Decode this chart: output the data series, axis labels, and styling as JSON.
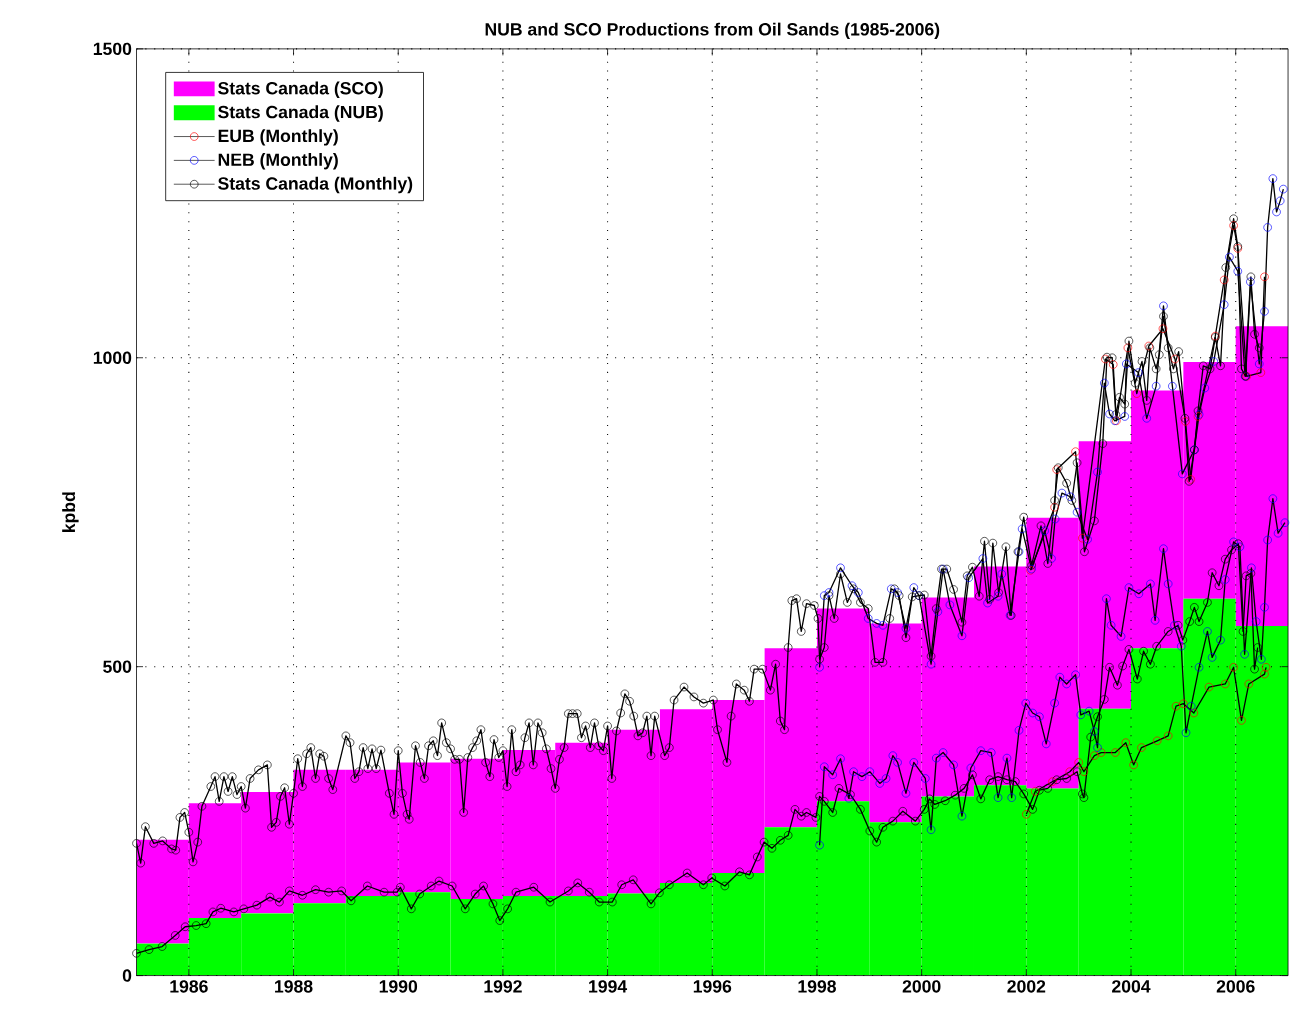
{
  "chart_data": {
    "type": "bar",
    "title": "NUB and SCO Productions from Oil Sands (1985-2006)",
    "ylabel": "kpbd",
    "x": [
      1985.5,
      1986.5,
      1987.5,
      1988.5,
      1989.5,
      1990.5,
      1991.5,
      1992.5,
      1993.5,
      1994.5,
      1995.5,
      1996.5,
      1997.5,
      1998.5,
      1999.5,
      2000.5,
      2001.5,
      2002.5,
      2003.5,
      2004.5,
      2005.5,
      2006.5
    ],
    "stacked": true,
    "grid": true,
    "legend": "top left",
    "xlim": [
      1985,
      2007
    ],
    "xticks": [
      1986,
      1988,
      1990,
      1992,
      1994,
      1996,
      1998,
      2000,
      2002,
      2004,
      2006
    ],
    "ylim": [
      0,
      1500
    ],
    "yticks": [
      0,
      500,
      1000,
      1500
    ],
    "series": [
      {
        "name": "Stats Canada (NUB)",
        "color": "#00ff00",
        "values": [
          52,
          93,
          101,
          117,
          129,
          135,
          124,
          129,
          129,
          133,
          150,
          166,
          240,
          282,
          248,
          290,
          308,
          303,
          432,
          530,
          610,
          566
        ]
      },
      {
        "name": "Stats Canada (SCO)",
        "color": "#ff00ff",
        "values": [
          168,
          186,
          196,
          216,
          204,
          210,
          227,
          236,
          248,
          265,
          281,
          280,
          290,
          312,
          322,
          322,
          354,
          438,
          433,
          417,
          383,
          485
        ]
      },
      {
        "name": "EUB (Monthly)",
        "type": "line",
        "color": "#ff0000",
        "marker": "circle",
        "x": [
          2002.08,
          2002.54,
          2002.58,
          2002.94,
          2003.07,
          2003.51,
          2003.66,
          2003.72,
          2003.94,
          2004.11,
          2004.34,
          2004.61,
          2004.84,
          2005.04,
          2005.14,
          2005.28,
          2005.61,
          2005.78,
          2005.96,
          2006.04,
          2006.21,
          2006.48,
          2006.55
        ],
        "values": [
          656,
          758,
          819,
          848,
          708,
          998,
          989,
          898,
          1016,
          942,
          1019,
          1047,
          998,
          897,
          803,
          905,
          1035,
          1126,
          1214,
          1177,
          970,
          976,
          1131
        ]
      },
      {
        "name": "NEB (Monthly)",
        "type": "line",
        "color": "#0000ff",
        "marker": "circle",
        "x": [
          1998.05,
          1998.14,
          1998.23,
          1998.45,
          1998.67,
          1998.79,
          1998.98,
          1999.14,
          1999.26,
          1999.42,
          1999.54,
          1999.7,
          1999.85,
          1999.95,
          2000.18,
          2000.31,
          2000.41,
          2000.54,
          2000.77,
          2000.9,
          2001.17,
          2001.26,
          2001.46,
          2001.53,
          2001.69,
          2001.86,
          2001.92,
          2002.1,
          2002.35,
          2002.48,
          2002.55,
          2002.68,
          2002.84,
          2002.97,
          2003.17,
          2003.36,
          2003.49,
          2003.59,
          2003.69,
          2003.88,
          2003.91,
          2004.14,
          2004.3,
          2004.48,
          2004.62,
          2004.79,
          2004.98,
          2005.21,
          2005.3,
          2005.41,
          2005.58,
          2005.78,
          2005.88,
          2006.04,
          2006.18,
          2006.28,
          2006.45,
          2006.55,
          2006.61,
          2006.71,
          2006.78,
          2006.85,
          2006.91
        ],
        "values": [
          499,
          615,
          620,
          660,
          631,
          620,
          578,
          570,
          567,
          626,
          620,
          562,
          628,
          615,
          504,
          589,
          658,
          600,
          550,
          644,
          675,
          603,
          614,
          650,
          583,
          686,
          723,
          658,
          720,
          675,
          739,
          781,
          775,
          750,
          706,
          815,
          959,
          909,
          898,
          905,
          990,
          976,
          902,
          954,
          1084,
          954,
          812,
          851,
          908,
          951,
          994,
          1086,
          1163,
          1140,
          970,
          1123,
          990,
          1075,
          1211,
          1290,
          1236,
          1254,
          1273
        ]
      },
      {
        "name": "Stats Canada (Monthly)",
        "type": "line",
        "color": "#000000",
        "marker": "circle",
        "x": [
          1985.0,
          1985.08,
          1985.17,
          1985.33,
          1985.5,
          1985.67,
          1985.75,
          1985.83,
          1985.92,
          1986.0,
          1986.08,
          1986.17,
          1986.25,
          1986.42,
          1986.5,
          1986.58,
          1986.67,
          1986.75,
          1986.83,
          1986.92,
          1987.0,
          1987.08,
          1987.17,
          1987.33,
          1987.5,
          1987.58,
          1987.67,
          1987.75,
          1987.83,
          1987.92,
          1988.0,
          1988.08,
          1988.17,
          1988.25,
          1988.33,
          1988.42,
          1988.5,
          1988.58,
          1988.67,
          1988.75,
          1989.0,
          1989.08,
          1989.17,
          1989.25,
          1989.33,
          1989.42,
          1989.5,
          1989.58,
          1989.67,
          1989.83,
          1989.92,
          1990.0,
          1990.08,
          1990.17,
          1990.21,
          1990.33,
          1990.42,
          1990.5,
          1990.58,
          1990.67,
          1990.75,
          1990.83,
          1990.92,
          1991.0,
          1991.08,
          1991.17,
          1991.25,
          1991.33,
          1991.42,
          1991.5,
          1991.58,
          1991.67,
          1991.75,
          1991.83,
          1991.92,
          1992.0,
          1992.08,
          1992.17,
          1992.25,
          1992.33,
          1992.42,
          1992.5,
          1992.58,
          1992.67,
          1992.75,
          1992.83,
          1992.92,
          1993.0,
          1993.08,
          1993.17,
          1993.25,
          1993.33,
          1993.42,
          1993.5,
          1993.58,
          1993.67,
          1993.75,
          1993.83,
          1993.92,
          1994.0,
          1994.08,
          1994.17,
          1994.25,
          1994.33,
          1994.42,
          1994.5,
          1994.58,
          1994.67,
          1994.75,
          1994.83,
          1994.9,
          1995.09,
          1995.18,
          1995.27,
          1995.46,
          1995.65,
          1995.83,
          1996.02,
          1996.1,
          1996.28,
          1996.36,
          1996.46,
          1996.61,
          1996.71,
          1996.8,
          1996.96,
          1997.11,
          1997.21,
          1997.3,
          1997.38,
          1997.45,
          1997.52,
          1997.61,
          1997.7,
          1997.8,
          1997.95,
          1998.02,
          1998.05,
          1998.14,
          1998.23,
          1998.33,
          1998.45,
          1998.58,
          1998.7,
          1998.83,
          1998.98,
          1999.11,
          1999.26,
          1999.39,
          1999.48,
          1999.57,
          1999.7,
          1999.82,
          1999.95,
          2000.05,
          2000.18,
          2000.28,
          2000.38,
          2000.48,
          2000.61,
          2000.77,
          2000.87,
          2000.97,
          2001.1,
          2001.2,
          2001.3,
          2001.36,
          2001.47,
          2001.61,
          2001.71,
          2001.84,
          2001.95,
          2002.1,
          2002.28,
          2002.41,
          2002.54,
          2002.61,
          2002.77,
          2002.87,
          2002.97,
          2003.11,
          2003.3,
          2003.46,
          2003.54,
          2003.64,
          2003.71,
          2003.78,
          2003.88,
          2003.96,
          2004.08,
          2004.21,
          2004.3,
          2004.36,
          2004.48,
          2004.54,
          2004.62,
          2004.71,
          2004.81,
          2004.91,
          2005.03,
          2005.11,
          2005.21,
          2005.28,
          2005.38,
          2005.51,
          2005.61,
          2005.71,
          2005.81,
          2005.96,
          2006.04,
          2006.11,
          2006.19,
          2006.29,
          2006.36,
          2006.45
        ],
        "values": [
          214,
          182,
          241,
          214,
          218,
          205,
          203,
          256,
          264,
          232,
          184,
          216,
          274,
          306,
          322,
          282,
          322,
          298,
          322,
          293,
          306,
          271,
          319,
          333,
          341,
          240,
          248,
          290,
          304,
          245,
          295,
          351,
          306,
          359,
          369,
          319,
          359,
          355,
          319,
          301,
          388,
          377,
          319,
          330,
          369,
          335,
          367,
          335,
          365,
          295,
          261,
          364,
          295,
          261,
          253,
          372,
          345,
          319,
          372,
          380,
          356,
          409,
          377,
          367,
          350,
          350,
          264,
          353,
          369,
          380,
          398,
          345,
          322,
          382,
          353,
          364,
          306,
          398,
          330,
          341,
          385,
          409,
          341,
          409,
          393,
          367,
          335,
          303,
          350,
          369,
          424,
          424,
          424,
          385,
          404,
          369,
          409,
          372,
          364,
          404,
          319,
          396,
          425,
          456,
          444,
          420,
          388,
          393,
          420,
          356,
          420,
          356,
          369,
          446,
          467,
          451,
          441,
          446,
          398,
          345,
          420,
          472,
          462,
          444,
          496,
          496,
          462,
          504,
          412,
          398,
          531,
          607,
          610,
          557,
          602,
          599,
          578,
          512,
          531,
          615,
          578,
          650,
          604,
          626,
          604,
          594,
          507,
          507,
          578,
          626,
          615,
          547,
          613,
          615,
          616,
          517,
          594,
          658,
          658,
          625,
          572,
          647,
          661,
          614,
          703,
          609,
          700,
          620,
          694,
          583,
          686,
          742,
          664,
          728,
          667,
          769,
          822,
          797,
          769,
          830,
          686,
          736,
          861,
          1001,
          1000,
          908,
          936,
          925,
          1027,
          959,
          994,
          931,
          1016,
          982,
          1005,
          1067,
          1016,
          982,
          1010,
          902,
          800,
          851,
          914,
          987,
          982,
          1033,
          987,
          1146,
          1225,
          1180,
          982,
          970,
          1131,
          1038,
          1016
        ]
      },
      {
        "type": "line",
        "color": "#ff0000",
        "marker": "circle",
        "x": [
          2002.0,
          2002.17,
          2002.5,
          2002.83,
          2003.0,
          2003.1,
          2003.3,
          2003.43,
          2003.7,
          2003.9,
          2004.05,
          2004.2,
          2004.5,
          2004.71,
          2004.86,
          2005.0,
          2005.2,
          2005.49,
          2005.8,
          2005.96,
          2006.11,
          2006.25,
          2006.55,
          2006.58
        ],
        "values": [
          261,
          298,
          314,
          330,
          345,
          330,
          356,
          361,
          361,
          377,
          341,
          369,
          380,
          388,
          436,
          440,
          425,
          467,
          472,
          499,
          413,
          472,
          488,
          499
        ]
      },
      {
        "type": "line",
        "color": "#0000ff",
        "marker": "circle",
        "x": [
          1998.05,
          1998.14,
          1998.3,
          1998.45,
          1998.61,
          1998.7,
          1998.86,
          1999.01,
          1999.2,
          1999.32,
          1999.45,
          1999.54,
          1999.7,
          1999.85,
          2000.07,
          2000.18,
          2000.28,
          2000.41,
          2000.61,
          2000.77,
          2000.94,
          2001.13,
          2001.33,
          2001.46,
          2001.63,
          2001.72,
          2001.86,
          2001.99,
          2002.12,
          2002.25,
          2002.38,
          2002.54,
          2002.64,
          2002.77,
          2002.94,
          2003.04,
          2003.2,
          2003.3,
          2003.36,
          2003.53,
          2003.62,
          2003.81,
          2003.96,
          2004.15,
          2004.37,
          2004.46,
          2004.62,
          2004.71,
          2004.83,
          2004.96,
          2005.05,
          2005.15,
          2005.3,
          2005.46,
          2005.55,
          2005.71,
          2005.8,
          2005.96,
          2006.08,
          2006.17,
          2006.3,
          2006.39,
          2006.49,
          2006.55,
          2006.61,
          2006.71,
          2006.81,
          2006.94
        ],
        "values": [
          211,
          338,
          325,
          351,
          287,
          330,
          322,
          330,
          311,
          319,
          356,
          345,
          295,
          345,
          319,
          236,
          352,
          361,
          341,
          258,
          336,
          364,
          361,
          288,
          352,
          288,
          397,
          441,
          425,
          419,
          375,
          441,
          483,
          472,
          487,
          422,
          428,
          395,
          369,
          610,
          567,
          549,
          628,
          618,
          634,
          575,
          691,
          634,
          567,
          533,
          393,
          436,
          499,
          557,
          515,
          543,
          641,
          702,
          694,
          520,
          660,
          573,
          512,
          596,
          705,
          772,
          716,
          733
        ]
      },
      {
        "type": "line",
        "color": "#000000",
        "marker": "circle",
        "x": [
          1985.0,
          1985.24,
          1985.49,
          1985.74,
          1985.93,
          1986.14,
          1986.33,
          1986.46,
          1986.61,
          1986.86,
          1987.05,
          1987.3,
          1987.55,
          1987.73,
          1987.92,
          1988.17,
          1988.42,
          1988.67,
          1988.92,
          1989.1,
          1989.41,
          1989.73,
          1989.98,
          1990.04,
          1990.25,
          1990.41,
          1990.63,
          1990.78,
          1991.03,
          1991.28,
          1991.47,
          1991.63,
          1991.81,
          1991.94,
          1992.09,
          1992.25,
          1992.59,
          1992.9,
          1993.25,
          1993.43,
          1993.65,
          1993.84,
          1994.09,
          1994.27,
          1994.49,
          1994.83,
          1994.99,
          1995.18,
          1995.52,
          1995.83,
          1995.99,
          1996.24,
          1996.52,
          1996.71,
          1996.86,
          1996.99,
          1997.14,
          1997.3,
          1997.45,
          1997.58,
          1997.7,
          1997.8,
          1997.98,
          1998.05,
          1998.14,
          1998.3,
          1998.42,
          1998.64,
          1998.83,
          1999.01,
          1999.14,
          1999.26,
          1999.45,
          1999.64,
          1999.88,
          2000.05,
          2000.15,
          2000.25,
          2000.45,
          2000.64,
          2000.81,
          2000.97,
          2001.13,
          2001.3,
          2001.46,
          2001.63,
          2001.79,
          2001.95,
          2002.12,
          2002.25,
          2002.41,
          2002.58,
          2002.77,
          2002.97,
          2003.07,
          2003.1,
          2003.23,
          2003.36,
          2003.49,
          2003.59,
          2003.74,
          2003.84,
          2003.96,
          2004.12,
          2004.24,
          2004.37,
          2004.49,
          2004.71,
          2004.9,
          2004.99,
          2005.12,
          2005.21,
          2005.3,
          2005.46,
          2005.55,
          2005.68,
          2005.8,
          2005.92,
          2006.05,
          2006.14,
          2006.2,
          2006.29,
          2006.36,
          2006.42
        ],
        "values": [
          36,
          42,
          47,
          65,
          79,
          81,
          84,
          103,
          109,
          103,
          108,
          114,
          127,
          119,
          137,
          130,
          139,
          135,
          137,
          121,
          145,
          135,
          135,
          143,
          108,
          132,
          145,
          153,
          145,
          108,
          132,
          145,
          116,
          89,
          108,
          135,
          143,
          119,
          137,
          150,
          135,
          119,
          119,
          147,
          155,
          116,
          134,
          147,
          166,
          147,
          158,
          145,
          168,
          163,
          192,
          216,
          206,
          219,
          227,
          269,
          258,
          264,
          256,
          290,
          282,
          264,
          303,
          293,
          269,
          234,
          216,
          240,
          250,
          266,
          250,
          269,
          286,
          277,
          283,
          292,
          303,
          325,
          286,
          317,
          322,
          317,
          314,
          294,
          269,
          300,
          303,
          317,
          319,
          330,
          294,
          288,
          386,
          419,
          447,
          499,
          470,
          501,
          528,
          480,
          525,
          504,
          533,
          557,
          567,
          543,
          573,
          596,
          573,
          604,
          652,
          631,
          674,
          689,
          699,
          557,
          647,
          651,
          496,
          531
        ]
      }
    ]
  }
}
